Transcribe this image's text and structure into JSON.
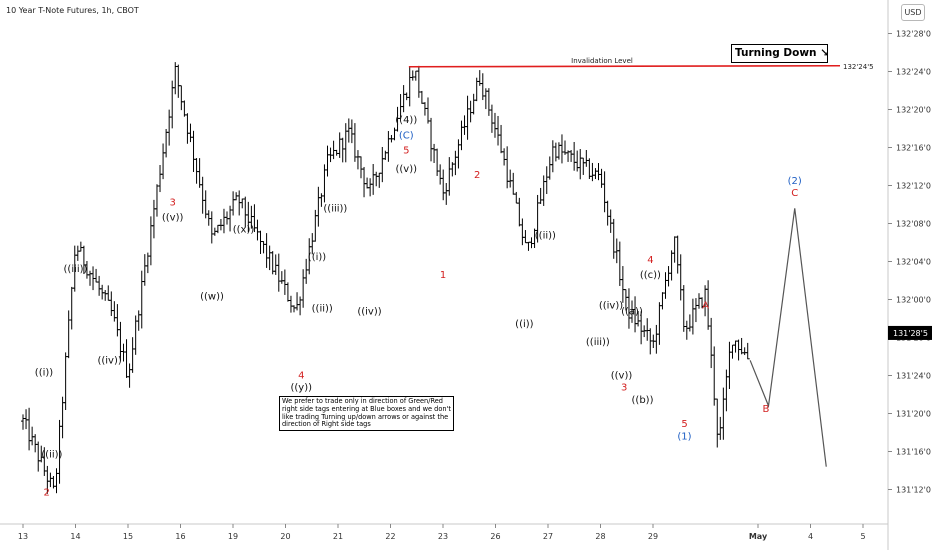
{
  "title": "10 Year T-Note Futures, 1h, CBOT",
  "currency_button": "USD",
  "turning_box": {
    "label": "Turning Down",
    "arrow": "↘"
  },
  "note_box": "We prefer to trade only in direction of Green/Red right side tags entering at Blue boxes and we don't like trading Turning up/down arrows or against the direction of Right side tags",
  "colors": {
    "candles": "#000000",
    "invalidation_line": "#e01e1e",
    "projection": "#555555",
    "label_black": "#111111",
    "label_red": "#d32020",
    "label_blue": "#1f5fc4",
    "price_tag_bg": "#000000",
    "price_tag_text": "#ffffff"
  },
  "chart_data": {
    "type": "ohlc",
    "instrument": "10 Year T-Note Futures",
    "timeframe": "1h",
    "y_range_decimal": [
      131.31,
      132.96
    ],
    "y_ticks": [
      "132'28'0",
      "132'24'0",
      "132'20'0",
      "132'16'0",
      "132'12'0",
      "132'08'0",
      "132'04'0",
      "132'00'0",
      "131'28'0",
      "131'24'0",
      "131'20'0",
      "131'16'0",
      "131'12'0"
    ],
    "x_ticks": [
      "13",
      "14",
      "15",
      "16",
      "19",
      "20",
      "21",
      "22",
      "23",
      "26",
      "27",
      "28",
      "29",
      "May",
      "4",
      "5"
    ],
    "current_price": "131'28'5",
    "invalidation": {
      "label": "Invalidation Level",
      "price_label": "132'24'5",
      "price": 132.7656
    },
    "close_path": [
      [
        0,
        131.6
      ],
      [
        0.6,
        131.36
      ],
      [
        1.0,
        132.18
      ],
      [
        1.7,
        131.95
      ],
      [
        2.0,
        131.75
      ],
      [
        2.9,
        132.75
      ],
      [
        3.6,
        132.2
      ],
      [
        4.1,
        132.33
      ],
      [
        5.2,
        131.96
      ],
      [
        5.8,
        132.45
      ],
      [
        6.2,
        132.55
      ],
      [
        6.6,
        132.35
      ],
      [
        7.45,
        132.76
      ],
      [
        8.0,
        132.35
      ],
      [
        8.7,
        132.73
      ],
      [
        9.1,
        132.5
      ],
      [
        9.6,
        132.15
      ],
      [
        10.1,
        132.5
      ],
      [
        11.0,
        132.4
      ],
      [
        11.5,
        131.97
      ],
      [
        12.0,
        131.85
      ],
      [
        12.4,
        132.2
      ],
      [
        12.6,
        131.9
      ],
      [
        13.0,
        132.02
      ],
      [
        13.25,
        131.52
      ],
      [
        13.5,
        131.88
      ],
      [
        13.85,
        131.8
      ]
    ],
    "projection_path": [
      [
        13.85,
        131.8
      ],
      [
        14.2,
        131.65
      ],
      [
        14.7,
        132.3
      ],
      [
        15.3,
        131.45
      ]
    ],
    "wave_labels": [
      {
        "text": "((i))",
        "x": 0.4,
        "y": 131.75,
        "color": "black",
        "pos": "above"
      },
      {
        "text": "((ii))",
        "x": 0.55,
        "y": 131.48,
        "color": "black",
        "pos": "above"
      },
      {
        "text": "2",
        "x": 0.45,
        "y": 131.355,
        "color": "red",
        "pos": "below"
      },
      {
        "text": "((iii))",
        "x": 1.0,
        "y": 132.09,
        "color": "black",
        "pos": "above"
      },
      {
        "text": "((iv))",
        "x": 1.65,
        "y": 131.79,
        "color": "black",
        "pos": "below"
      },
      {
        "text": "((v))",
        "x": 2.85,
        "y": 132.26,
        "color": "black",
        "pos": "above"
      },
      {
        "text": "3",
        "x": 2.85,
        "y": 132.31,
        "color": "red",
        "pos": "above"
      },
      {
        "text": "((w))",
        "x": 3.6,
        "y": 132.0,
        "color": "black",
        "pos": "below"
      },
      {
        "text": "((x))",
        "x": 4.2,
        "y": 132.22,
        "color": "black",
        "pos": "above"
      },
      {
        "text": "((y))",
        "x": 5.3,
        "y": 131.7,
        "color": "black",
        "pos": "below"
      },
      {
        "text": "4",
        "x": 5.3,
        "y": 131.74,
        "color": "red",
        "pos": "below"
      },
      {
        "text": "((i))",
        "x": 5.6,
        "y": 132.13,
        "color": "black",
        "pos": "above"
      },
      {
        "text": "((ii))",
        "x": 5.7,
        "y": 131.96,
        "color": "black",
        "pos": "above"
      },
      {
        "text": "((iii))",
        "x": 5.95,
        "y": 132.29,
        "color": "black",
        "pos": "above"
      },
      {
        "text": "((iv))",
        "x": 6.6,
        "y": 131.95,
        "color": "black",
        "pos": "below"
      },
      {
        "text": "((v))",
        "x": 7.3,
        "y": 132.42,
        "color": "black",
        "pos": "above"
      },
      {
        "text": "5",
        "x": 7.3,
        "y": 132.48,
        "color": "red",
        "pos": "above"
      },
      {
        "text": "(C)",
        "x": 7.3,
        "y": 132.53,
        "color": "blue",
        "pos": "above"
      },
      {
        "text": "((4))",
        "x": 7.3,
        "y": 132.58,
        "color": "black",
        "pos": "above"
      },
      {
        "text": "1",
        "x": 8.0,
        "y": 132.07,
        "color": "red",
        "pos": "below"
      },
      {
        "text": "2",
        "x": 8.65,
        "y": 132.4,
        "color": "red",
        "pos": "above"
      },
      {
        "text": "((i))",
        "x": 9.55,
        "y": 131.91,
        "color": "black",
        "pos": "below"
      },
      {
        "text": "((ii))",
        "x": 9.95,
        "y": 132.2,
        "color": "black",
        "pos": "above"
      },
      {
        "text": "((iii))",
        "x": 10.95,
        "y": 131.85,
        "color": "black",
        "pos": "below"
      },
      {
        "text": "((iv))",
        "x": 11.2,
        "y": 131.97,
        "color": "black",
        "pos": "above"
      },
      {
        "text": "((v))",
        "x": 11.4,
        "y": 131.74,
        "color": "black",
        "pos": "below"
      },
      {
        "text": "3",
        "x": 11.45,
        "y": 131.7,
        "color": "red",
        "pos": "below"
      },
      {
        "text": "((a))",
        "x": 11.6,
        "y": 131.95,
        "color": "black",
        "pos": "above"
      },
      {
        "text": "((b))",
        "x": 11.8,
        "y": 131.66,
        "color": "black",
        "pos": "below"
      },
      {
        "text": "((c))",
        "x": 11.95,
        "y": 132.07,
        "color": "black",
        "pos": "above"
      },
      {
        "text": "4",
        "x": 11.95,
        "y": 132.12,
        "color": "red",
        "pos": "above"
      },
      {
        "text": "5",
        "x": 12.6,
        "y": 131.58,
        "color": "red",
        "pos": "below"
      },
      {
        "text": "(1)",
        "x": 12.6,
        "y": 131.54,
        "color": "blue",
        "pos": "below"
      },
      {
        "text": "A",
        "x": 13.0,
        "y": 131.97,
        "color": "red",
        "pos": "above"
      },
      {
        "text": "B",
        "x": 14.15,
        "y": 131.63,
        "color": "red",
        "pos": "below"
      },
      {
        "text": "C",
        "x": 14.7,
        "y": 132.34,
        "color": "red",
        "pos": "above"
      },
      {
        "text": "(2)",
        "x": 14.7,
        "y": 132.38,
        "color": "blue",
        "pos": "above"
      }
    ]
  }
}
